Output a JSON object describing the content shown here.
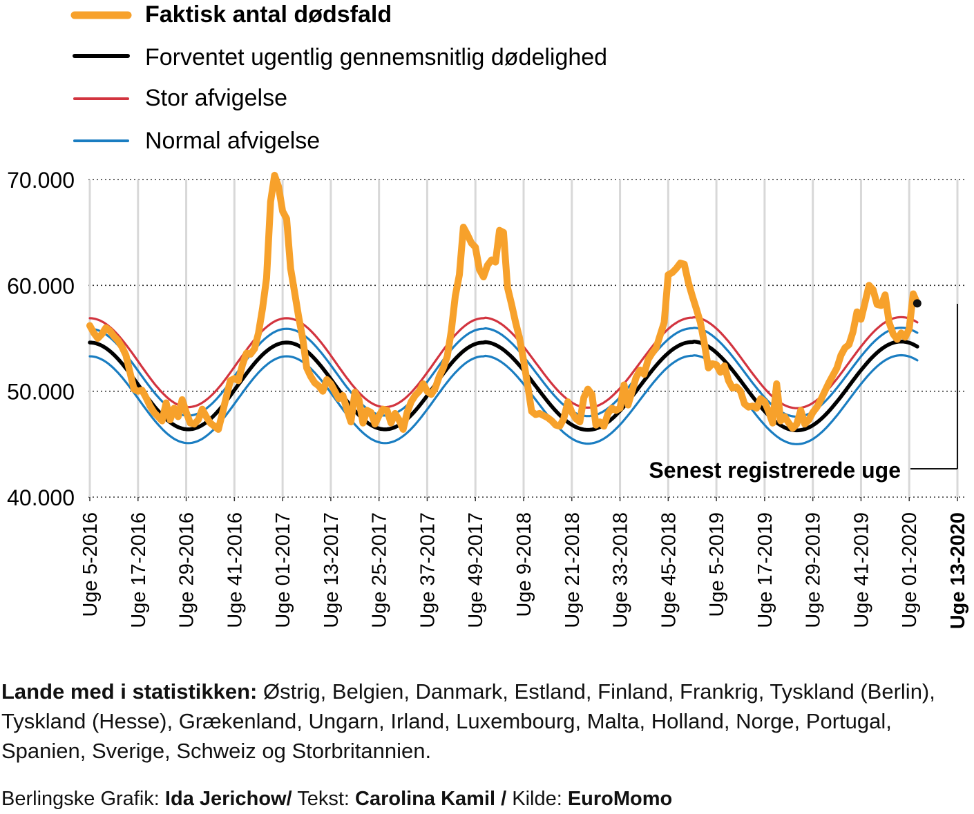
{
  "legend": {
    "actual": "Faktisk antal dødsfald",
    "expected": "Forventet ugentlig gennemsnitlig dødelighed",
    "major": "Stor afvigelse",
    "normal": "Normal afvigelse"
  },
  "annotation": "Senest registrerede uge",
  "footer": {
    "countries_label": "Lande med i statistikken:",
    "countries_text": " Østrig, Belgien, Danmark, Estland, Finland, Frankrig, Tyskland (Berlin), Tyskland (Hesse), Grækenland, Ungarn, Irland, Luxembourg, Malta, Holland, Norge, Portugal, Spanien, Sverige, Schweiz og Storbritannien.",
    "credit_prefix": "Berlingske Grafik: ",
    "credit_author": "Ida Jerichow/",
    "credit_text_label": " Tekst: ",
    "credit_text_author": "Carolina Kamil /",
    "credit_source_label": " Kilde: ",
    "credit_source": "EuroMomo"
  },
  "colors": {
    "actual": "#f7a12b",
    "expected": "#000000",
    "major": "#d2343f",
    "normal": "#1a7dc1",
    "grid": "#d8d8d8"
  },
  "chart_data": {
    "type": "line",
    "title": "",
    "xlabel": "",
    "ylabel": "",
    "ylim": [
      40000,
      70000
    ],
    "yticks": [
      40000,
      50000,
      60000,
      70000
    ],
    "ytick_labels": [
      "40.000",
      "50.000",
      "60.000",
      "70.000"
    ],
    "xtick_labels": [
      "Uge 5-2016",
      "Uge 17-2016",
      "Uge 29-2016",
      "Uge 41-2016",
      "Uge 01-2017",
      "Uge 13-2017",
      "Uge 25-2017",
      "Uge 37-2017",
      "Uge 49-2017",
      "Uge 9-2018",
      "Uge 21-2018",
      "Uge 33-2018",
      "Uge 45-2018",
      "Uge 5-2019",
      "Uge 17-2019",
      "Uge 29-2019",
      "Uge 41-2019",
      "Uge 01-2020",
      "Uge 13-2020"
    ],
    "x_range_weeks": [
      0,
      217
    ],
    "series": [
      {
        "name": "Faktisk antal dødsfald",
        "key": "actual",
        "points": [
          [
            0,
            56200
          ],
          [
            1,
            55500
          ],
          [
            2,
            55000
          ],
          [
            3,
            55400
          ],
          [
            4,
            56000
          ],
          [
            5,
            55700
          ],
          [
            6,
            55200
          ],
          [
            7,
            54800
          ],
          [
            8,
            54200
          ],
          [
            9,
            53400
          ],
          [
            10,
            51800
          ],
          [
            11,
            50200
          ],
          [
            12,
            50000
          ],
          [
            13,
            50100
          ],
          [
            14,
            49400
          ],
          [
            15,
            48600
          ],
          [
            16,
            48000
          ],
          [
            17,
            47600
          ],
          [
            18,
            47200
          ],
          [
            19,
            48900
          ],
          [
            20,
            47300
          ],
          [
            21,
            48400
          ],
          [
            22,
            47600
          ],
          [
            23,
            49200
          ],
          [
            24,
            48000
          ],
          [
            25,
            47000
          ],
          [
            26,
            46900
          ],
          [
            27,
            47300
          ],
          [
            28,
            48300
          ],
          [
            29,
            47600
          ],
          [
            30,
            47000
          ],
          [
            31,
            46700
          ],
          [
            32,
            46400
          ],
          [
            33,
            47900
          ],
          [
            34,
            49500
          ],
          [
            35,
            51000
          ],
          [
            36,
            51200
          ],
          [
            37,
            51000
          ],
          [
            38,
            52500
          ],
          [
            39,
            53600
          ],
          [
            40,
            53500
          ],
          [
            41,
            54000
          ],
          [
            42,
            55500
          ],
          [
            43,
            57800
          ],
          [
            44,
            60700
          ],
          [
            45,
            67900
          ],
          [
            46,
            70400
          ],
          [
            47,
            69300
          ],
          [
            48,
            67000
          ],
          [
            49,
            66300
          ],
          [
            50,
            61600
          ],
          [
            51,
            59300
          ],
          [
            52,
            57000
          ],
          [
            53,
            55000
          ],
          [
            54,
            52200
          ],
          [
            55,
            51400
          ],
          [
            56,
            50800
          ],
          [
            57,
            50500
          ],
          [
            58,
            50000
          ],
          [
            59,
            51100
          ],
          [
            60,
            50700
          ],
          [
            61,
            50000
          ],
          [
            62,
            49300
          ],
          [
            63,
            49600
          ],
          [
            64,
            48300
          ],
          [
            65,
            47100
          ],
          [
            66,
            49900
          ],
          [
            67,
            49200
          ],
          [
            68,
            47000
          ],
          [
            69,
            48200
          ],
          [
            70,
            48000
          ],
          [
            71,
            46900
          ],
          [
            72,
            47700
          ],
          [
            73,
            48300
          ],
          [
            74,
            48200
          ],
          [
            75,
            47000
          ],
          [
            76,
            47900
          ],
          [
            77,
            47300
          ],
          [
            78,
            46400
          ],
          [
            79,
            48000
          ],
          [
            80,
            49000
          ],
          [
            81,
            49600
          ],
          [
            82,
            50000
          ],
          [
            83,
            50700
          ],
          [
            84,
            50000
          ],
          [
            85,
            49700
          ],
          [
            86,
            50300
          ],
          [
            87,
            51400
          ],
          [
            88,
            52200
          ],
          [
            89,
            53300
          ],
          [
            90,
            55700
          ],
          [
            91,
            59000
          ],
          [
            92,
            61000
          ],
          [
            93,
            65500
          ],
          [
            94,
            64800
          ],
          [
            95,
            64000
          ],
          [
            96,
            63600
          ],
          [
            97,
            61500
          ],
          [
            98,
            60800
          ],
          [
            99,
            61900
          ],
          [
            100,
            62400
          ],
          [
            101,
            62200
          ],
          [
            102,
            65200
          ],
          [
            103,
            65000
          ],
          [
            104,
            59800
          ],
          [
            105,
            58200
          ],
          [
            106,
            56500
          ],
          [
            107,
            55000
          ],
          [
            108,
            52900
          ],
          [
            109,
            50600
          ],
          [
            110,
            48100
          ],
          [
            111,
            47800
          ],
          [
            112,
            47900
          ],
          [
            113,
            47700
          ],
          [
            114,
            47500
          ],
          [
            115,
            47200
          ],
          [
            116,
            46800
          ],
          [
            117,
            46700
          ],
          [
            118,
            47400
          ],
          [
            119,
            49000
          ],
          [
            120,
            48000
          ],
          [
            121,
            47400
          ],
          [
            122,
            47100
          ],
          [
            123,
            49400
          ],
          [
            124,
            50200
          ],
          [
            125,
            49700
          ],
          [
            126,
            46800
          ],
          [
            127,
            47100
          ],
          [
            128,
            46700
          ],
          [
            129,
            47900
          ],
          [
            130,
            48400
          ],
          [
            131,
            48200
          ],
          [
            132,
            48400
          ],
          [
            133,
            50600
          ],
          [
            134,
            48700
          ],
          [
            135,
            50000
          ],
          [
            136,
            51300
          ],
          [
            137,
            52000
          ],
          [
            138,
            51600
          ],
          [
            139,
            53000
          ],
          [
            140,
            53600
          ],
          [
            141,
            54100
          ],
          [
            142,
            55300
          ],
          [
            143,
            56500
          ],
          [
            144,
            61000
          ],
          [
            145,
            61200
          ],
          [
            146,
            61600
          ],
          [
            147,
            62100
          ],
          [
            148,
            62000
          ],
          [
            149,
            60300
          ],
          [
            150,
            59000
          ],
          [
            151,
            57800
          ],
          [
            152,
            56500
          ],
          [
            153,
            54500
          ],
          [
            154,
            52200
          ],
          [
            155,
            52600
          ],
          [
            156,
            52500
          ],
          [
            157,
            51800
          ],
          [
            158,
            52400
          ],
          [
            159,
            51000
          ],
          [
            160,
            50300
          ],
          [
            161,
            50400
          ],
          [
            162,
            50000
          ],
          [
            163,
            48800
          ],
          [
            164,
            48500
          ],
          [
            165,
            48600
          ],
          [
            166,
            48400
          ],
          [
            167,
            49300
          ],
          [
            168,
            49000
          ],
          [
            169,
            48100
          ],
          [
            170,
            47000
          ],
          [
            171,
            50700
          ],
          [
            172,
            47200
          ],
          [
            173,
            47600
          ],
          [
            174,
            47000
          ],
          [
            175,
            46500
          ],
          [
            176,
            46900
          ],
          [
            177,
            48200
          ],
          [
            178,
            46900
          ],
          [
            179,
            47300
          ],
          [
            180,
            48000
          ],
          [
            181,
            48500
          ],
          [
            182,
            49200
          ],
          [
            183,
            50000
          ],
          [
            184,
            50800
          ],
          [
            185,
            51500
          ],
          [
            186,
            52200
          ],
          [
            187,
            53400
          ],
          [
            188,
            54100
          ],
          [
            189,
            54400
          ],
          [
            190,
            55600
          ],
          [
            191,
            57500
          ],
          [
            192,
            56800
          ],
          [
            193,
            58400
          ],
          [
            194,
            60000
          ],
          [
            195,
            59600
          ],
          [
            196,
            58200
          ],
          [
            197,
            58100
          ],
          [
            198,
            59100
          ],
          [
            199,
            56500
          ],
          [
            200,
            55400
          ],
          [
            201,
            54900
          ],
          [
            202,
            55500
          ],
          [
            203,
            55100
          ],
          [
            204,
            55900
          ],
          [
            205,
            59200
          ],
          [
            206,
            58300
          ]
        ]
      },
      {
        "name": "Forventet ugentlig gennemsnitlig dødelighed",
        "key": "expected",
        "model": {
          "baseline": 50500,
          "amplitude": [
            4100,
            4100,
            4150,
            4200
          ],
          "peak_weeks": [
            0,
            49,
            98,
            150,
            202
          ],
          "x_end": 206
        }
      },
      {
        "name": "Stor afvigelse",
        "key": "major",
        "model": {
          "offset_peak": 2300,
          "offset_trough": 2100
        }
      },
      {
        "name": "Normal afvigelse",
        "key": "normal",
        "model": {
          "offset": 1300,
          "both_sides": true
        }
      }
    ],
    "latest_point": {
      "week": 206,
      "value": 58300
    }
  }
}
